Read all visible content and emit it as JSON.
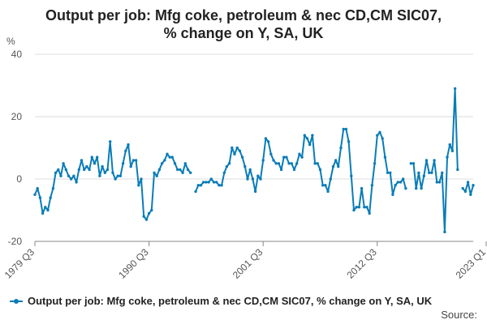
{
  "title_line1": "Output per job: Mfg coke, petroleum & nec CD,CM SIC07,",
  "title_line2": "% change on Y, SA, UK",
  "source_label": "Source:",
  "colors": {
    "series": "#0a7cb8",
    "grid": "#dddddd",
    "axis": "#888888",
    "text": "#555555"
  },
  "chart_data": {
    "type": "line",
    "ylabel": "%",
    "ylim": [
      -20,
      40
    ],
    "y_ticks": [
      -20,
      0,
      20,
      40
    ],
    "x_tick_labels": [
      "1979 Q3",
      "1990 Q3",
      "2001 Q3",
      "2012 Q3",
      "2023 Q1"
    ],
    "x_tick_index": [
      0,
      44,
      88,
      132,
      174
    ],
    "grid": true,
    "legend_position": "bottom",
    "series": [
      {
        "name": "Output per job: Mfg coke, petroleum & nec CD,CM SIC07, % change on Y, SA, UK",
        "values": [
          -5,
          -3,
          -6,
          -11,
          -9,
          -10,
          -6,
          -3,
          2,
          3,
          1,
          5,
          3,
          1,
          0,
          1,
          -1,
          3,
          6,
          3,
          4,
          3,
          7,
          5,
          7,
          1,
          4,
          2,
          3,
          12,
          2,
          0,
          1,
          1,
          5,
          9,
          11,
          4,
          6,
          6,
          -2,
          0,
          -12,
          -13,
          -11,
          -10,
          2,
          1,
          3,
          5,
          6,
          8,
          7,
          7,
          5,
          3,
          3,
          2,
          5,
          3,
          2,
          null,
          -4,
          -2,
          -2,
          -1,
          -1,
          -1,
          0,
          -1,
          -1,
          -2,
          -2,
          2,
          4,
          5,
          10,
          8,
          10,
          9,
          7,
          4,
          0,
          3,
          0,
          -4,
          1,
          0,
          6,
          13,
          12,
          8,
          6,
          5,
          5,
          3,
          7,
          7,
          5,
          5,
          3,
          5,
          8,
          7,
          14,
          13,
          11,
          14,
          5,
          5,
          3,
          -2,
          -2,
          -4,
          0,
          4,
          6,
          4,
          10,
          16,
          16,
          12,
          1,
          -10,
          -9,
          -9,
          -3,
          -9,
          -9,
          -11,
          -2,
          5,
          14,
          15,
          13,
          7,
          2,
          2,
          -5,
          -2,
          -1,
          -1,
          0,
          -3,
          null,
          5,
          5,
          -3,
          2,
          -3,
          1,
          6,
          2,
          2,
          6,
          -1,
          -1,
          2,
          -17,
          7,
          11,
          9,
          29,
          3,
          null,
          -3,
          -4,
          -1,
          -5,
          -2
        ]
      }
    ]
  }
}
